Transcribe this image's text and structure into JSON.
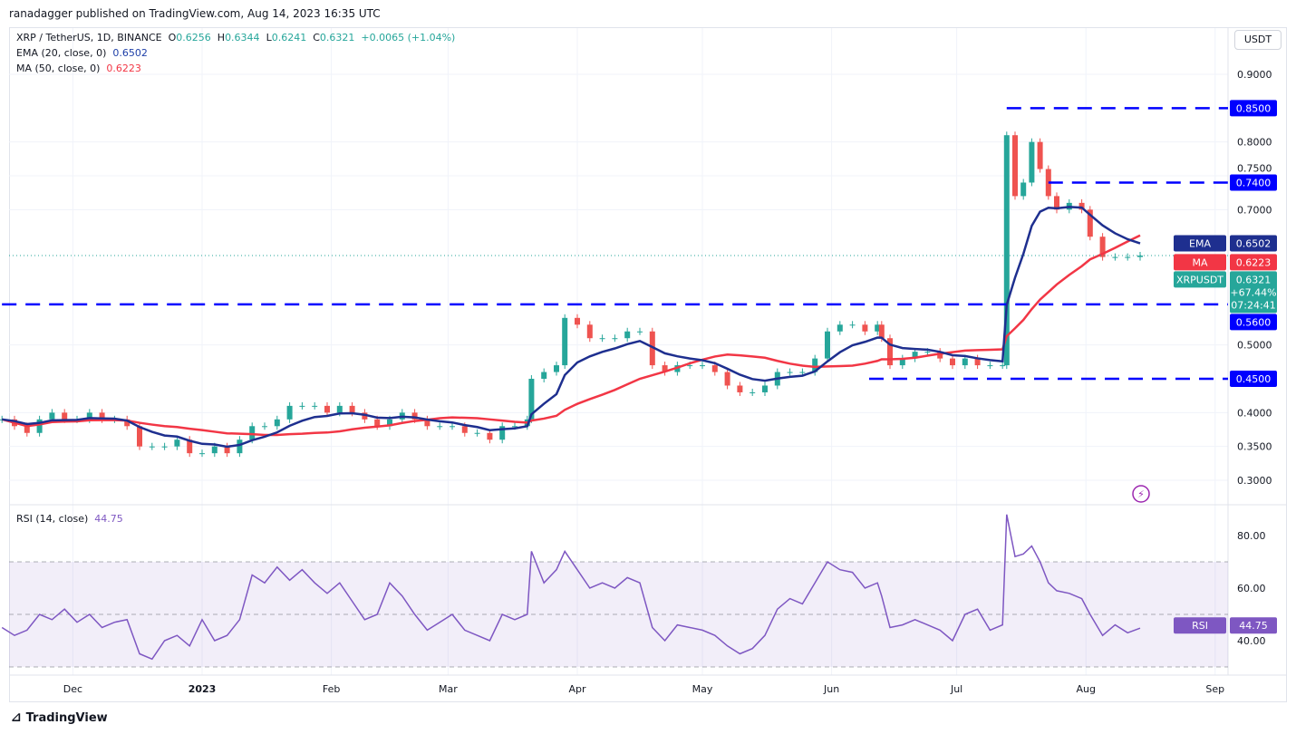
{
  "header": {
    "published": "ranadagger published on TradingView.com, Aug 14, 2023 16:35 UTC",
    "symbol": "XRP / TetherUS, 1D, BINANCE",
    "o_label": "O",
    "o": "0.6256",
    "h_label": "H",
    "h": "0.6344",
    "l_label": "L",
    "l": "0.6241",
    "c_label": "C",
    "c": "0.6321",
    "change": "+0.0065 (+1.04%)",
    "ema_label": "EMA (20, close, 0)",
    "ema": "0.6502",
    "ma_label": "MA (50, close, 0)",
    "ma": "0.6223",
    "rsi_label": "RSI (14, close)",
    "rsi": "44.75"
  },
  "currency": "USDT",
  "footer": "TradingView",
  "colors": {
    "up": "#26a69a",
    "down": "#ef5350",
    "ema": "#1e2f8f",
    "ma": "#f23645",
    "rsi": "#7e57c2",
    "level": "#0000ff"
  },
  "chart_data": {
    "type": "candlestick",
    "price_ticks": [
      "0.9000",
      "0.8000",
      "0.7500",
      "0.7000",
      "0.5000",
      "0.4000",
      "0.3500",
      "0.3000"
    ],
    "rsi_ticks": [
      "80.00",
      "60.00",
      "40.00"
    ],
    "rsi_bands": [
      70,
      30
    ],
    "time_ticks": [
      [
        "2022-12-01",
        "Dec"
      ],
      [
        "2023-01-01",
        "2023"
      ],
      [
        "2023-02-01",
        "Feb"
      ],
      [
        "2023-03-01",
        "Mar"
      ],
      [
        "2023-04-01",
        "Apr"
      ],
      [
        "2023-05-01",
        "May"
      ],
      [
        "2023-06-01",
        "Jun"
      ],
      [
        "2023-07-01",
        "Jul"
      ],
      [
        "2023-08-01",
        "Aug"
      ],
      [
        "2023-09-01",
        "Sep"
      ]
    ],
    "levels": [
      {
        "value": 0.85,
        "label": "0.8500",
        "from": "2023-07-13"
      },
      {
        "value": 0.74,
        "label": "0.7400",
        "from": "2023-07-23"
      },
      {
        "value": 0.56,
        "label": "0.5600",
        "from": "2022-11-14"
      },
      {
        "value": 0.45,
        "label": "0.4500",
        "from": "2023-06-10"
      }
    ],
    "last": {
      "label": "XRPUSDT",
      "price": "0.6321",
      "change": "+67.44%",
      "countdown": "07:24:41",
      "ema_tag": "EMA",
      "ema": "0.6502",
      "ma_tag": "MA",
      "ma": "0.6223",
      "rsi_tag": "RSI",
      "rsi": "44.75"
    },
    "dates": [
      "2022-11-14",
      "2022-11-17",
      "2022-11-20",
      "2022-11-23",
      "2022-11-26",
      "2022-11-29",
      "2022-12-02",
      "2022-12-05",
      "2022-12-08",
      "2022-12-11",
      "2022-12-14",
      "2022-12-17",
      "2022-12-20",
      "2022-12-23",
      "2022-12-26",
      "2022-12-29",
      "2023-01-01",
      "2023-01-04",
      "2023-01-07",
      "2023-01-10",
      "2023-01-13",
      "2023-01-16",
      "2023-01-19",
      "2023-01-22",
      "2023-01-25",
      "2023-01-28",
      "2023-01-31",
      "2023-02-03",
      "2023-02-06",
      "2023-02-09",
      "2023-02-12",
      "2023-02-15",
      "2023-02-18",
      "2023-02-21",
      "2023-02-24",
      "2023-02-27",
      "2023-03-02",
      "2023-03-05",
      "2023-03-08",
      "2023-03-11",
      "2023-03-14",
      "2023-03-17",
      "2023-03-20",
      "2023-03-21",
      "2023-03-24",
      "2023-03-27",
      "2023-03-29",
      "2023-04-01",
      "2023-04-04",
      "2023-04-07",
      "2023-04-10",
      "2023-04-13",
      "2023-04-16",
      "2023-04-19",
      "2023-04-22",
      "2023-04-25",
      "2023-04-28",
      "2023-05-01",
      "2023-05-04",
      "2023-05-07",
      "2023-05-10",
      "2023-05-13",
      "2023-05-16",
      "2023-05-19",
      "2023-05-22",
      "2023-05-25",
      "2023-05-28",
      "2023-05-31",
      "2023-06-03",
      "2023-06-06",
      "2023-06-09",
      "2023-06-12",
      "2023-06-13",
      "2023-06-15",
      "2023-06-18",
      "2023-06-21",
      "2023-06-24",
      "2023-06-27",
      "2023-06-30",
      "2023-07-03",
      "2023-07-06",
      "2023-07-09",
      "2023-07-12",
      "2023-07-13",
      "2023-07-15",
      "2023-07-17",
      "2023-07-19",
      "2023-07-21",
      "2023-07-23",
      "2023-07-25",
      "2023-07-28",
      "2023-07-31",
      "2023-08-02",
      "2023-08-05",
      "2023-08-08",
      "2023-08-11",
      "2023-08-14"
    ],
    "close": [
      0.39,
      0.38,
      0.37,
      0.39,
      0.4,
      0.39,
      0.39,
      0.4,
      0.39,
      0.39,
      0.38,
      0.35,
      0.35,
      0.35,
      0.36,
      0.34,
      0.34,
      0.35,
      0.34,
      0.36,
      0.38,
      0.38,
      0.39,
      0.41,
      0.41,
      0.41,
      0.4,
      0.41,
      0.4,
      0.39,
      0.38,
      0.39,
      0.4,
      0.39,
      0.38,
      0.38,
      0.38,
      0.37,
      0.37,
      0.36,
      0.38,
      0.38,
      0.39,
      0.45,
      0.46,
      0.47,
      0.54,
      0.53,
      0.51,
      0.51,
      0.51,
      0.52,
      0.52,
      0.47,
      0.46,
      0.47,
      0.47,
      0.47,
      0.46,
      0.44,
      0.43,
      0.43,
      0.44,
      0.46,
      0.46,
      0.46,
      0.48,
      0.52,
      0.53,
      0.53,
      0.52,
      0.53,
      0.51,
      0.47,
      0.48,
      0.49,
      0.49,
      0.48,
      0.47,
      0.48,
      0.47,
      0.47,
      0.47,
      0.81,
      0.72,
      0.74,
      0.8,
      0.76,
      0.72,
      0.7,
      0.71,
      0.7,
      0.66,
      0.63,
      0.63,
      0.63,
      0.6321
    ],
    "rsi_values": [
      45,
      42,
      44,
      50,
      48,
      52,
      47,
      50,
      45,
      47,
      48,
      35,
      33,
      40,
      42,
      38,
      48,
      40,
      42,
      48,
      65,
      62,
      68,
      63,
      67,
      62,
      58,
      62,
      55,
      48,
      50,
      62,
      57,
      50,
      44,
      47,
      50,
      44,
      42,
      40,
      50,
      48,
      50,
      74,
      62,
      67,
      74,
      67,
      60,
      62,
      60,
      64,
      62,
      45,
      40,
      46,
      45,
      44,
      42,
      38,
      35,
      37,
      42,
      52,
      56,
      54,
      62,
      70,
      67,
      66,
      60,
      62,
      57,
      45,
      46,
      48,
      46,
      44,
      40,
      50,
      52,
      44,
      46,
      88,
      72,
      73,
      76,
      70,
      62,
      59,
      58,
      56,
      50,
      42,
      46,
      43,
      44.75
    ]
  }
}
